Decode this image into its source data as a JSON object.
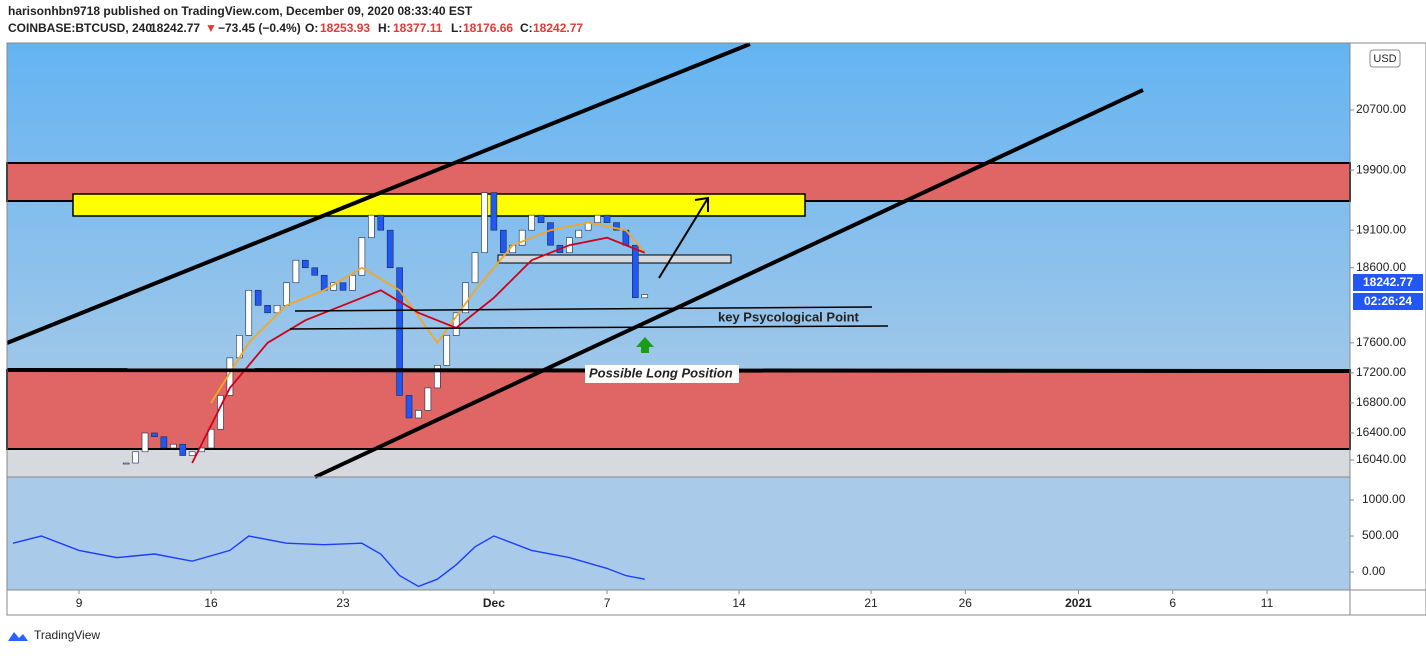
{
  "header": {
    "publisher": "harisonhbn9718 published on TradingView.com, December 09, 2020 08:33:40 EST",
    "symbol": "COINBASE:BTCUSD, 240",
    "last": "18242.77",
    "arrow": "▼",
    "change": "−73.45 (−0.4%)",
    "o_label": "O:",
    "open": "18253.93",
    "h_label": "H:",
    "high": "18377.11",
    "l_label": "L:",
    "low": "18176.66",
    "c_label": "C:",
    "close": "18242.77"
  },
  "currency": "USD",
  "countdown": "02:26:24",
  "brand": "TradingView",
  "annotations": {
    "key_point": "key Psycological Point",
    "long_position": "Possible Long Position"
  },
  "chart_data": {
    "type": "candlestick",
    "xlim": [
      -3.82,
      67.4
    ],
    "xticks": [
      {
        "value": 0,
        "label": "9"
      },
      {
        "value": 7,
        "label": "16"
      },
      {
        "value": 14,
        "label": "23"
      },
      {
        "value": 22,
        "label": "Dec"
      },
      {
        "value": 28,
        "label": "7"
      },
      {
        "value": 35,
        "label": "14"
      },
      {
        "value": 42,
        "label": "21"
      },
      {
        "value": 47,
        "label": "26"
      },
      {
        "value": 53,
        "label": "2021"
      },
      {
        "value": 58,
        "label": "6"
      },
      {
        "value": 63,
        "label": "11"
      }
    ],
    "ylim": [
      15814,
      21592
    ],
    "yticks": [
      {
        "value": 16040,
        "label": "16040.00"
      },
      {
        "value": 16400,
        "label": "16400.00"
      },
      {
        "value": 16800,
        "label": "16800.00"
      },
      {
        "value": 17200,
        "label": "17200.00"
      },
      {
        "value": 17600,
        "label": "17600.00"
      },
      {
        "value": 18600,
        "label": "18600.00"
      },
      {
        "value": 19100,
        "label": "19100.00"
      },
      {
        "value": 19900,
        "label": "19900.00"
      },
      {
        "value": 20700,
        "label": "20700.00"
      }
    ],
    "price": {
      "x": [
        2.5,
        3,
        3.5,
        4,
        4.5,
        5,
        5.5,
        6,
        6.5,
        7,
        7.5,
        8,
        8.5,
        9,
        9.5,
        10,
        10.5,
        11,
        11.5,
        12,
        12.5,
        13,
        13.5,
        14,
        14.5,
        15,
        15.5,
        16,
        16.5,
        17,
        17.5,
        18,
        18.5,
        19,
        19.5,
        20,
        20.5,
        21,
        21.5,
        22,
        22.5,
        23,
        23.5,
        24,
        24.5,
        25,
        25.5,
        26,
        26.5,
        27,
        27.5,
        28,
        28.5,
        29,
        29.5,
        30
      ],
      "values": [
        16000,
        16150,
        16400,
        16350,
        16200,
        16250,
        16100,
        16150,
        16200,
        16450,
        16900,
        17400,
        17700,
        18300,
        18100,
        18000,
        18100,
        18400,
        18700,
        18600,
        18500,
        18300,
        18400,
        18300,
        18500,
        19000,
        19300,
        19100,
        18600,
        16900,
        16600,
        16700,
        17000,
        17300,
        17700,
        18000,
        18400,
        18800,
        19600,
        19100,
        18800,
        18900,
        19100,
        19300,
        19200,
        18900,
        18800,
        19000,
        19100,
        19200,
        19300,
        19200,
        19100,
        18900,
        18200,
        18242.77
      ],
      "value_labels": {
        "29": null
      },
      "up_color": "#ffffff",
      "down_color": "#2157f3"
    },
    "series": [
      {
        "color": "#f5a623",
        "x": [
          7,
          9,
          11,
          13,
          15,
          17,
          19,
          21,
          23,
          25,
          27,
          29,
          30
        ],
        "values": [
          16800,
          17600,
          18100,
          18300,
          18600,
          18300,
          17600,
          18300,
          18900,
          19100,
          19200,
          19100,
          18800
        ]
      },
      {
        "color": "#d0021b",
        "x": [
          6,
          8,
          10,
          12,
          14,
          16,
          18,
          20,
          22,
          24,
          26,
          28,
          30
        ],
        "values": [
          16000,
          17000,
          17600,
          17900,
          18100,
          18300,
          18000,
          17800,
          18200,
          18700,
          18900,
          19000,
          18800
        ]
      }
    ],
    "indicator": {
      "ylim": [
        -250,
        1320
      ],
      "yticks": [
        {
          "value": 1000,
          "label": "1000.00"
        },
        {
          "value": 500,
          "label": "500.00"
        },
        {
          "value": 0,
          "label": "0.00"
        }
      ],
      "color": "#1e3cff",
      "x": [
        -3.5,
        -2,
        0,
        2,
        4,
        6,
        8,
        9,
        11,
        13,
        15,
        16,
        17,
        18,
        19,
        20,
        21,
        22,
        24,
        26,
        28,
        29,
        30
      ],
      "values": [
        400,
        500,
        300,
        200,
        250,
        150,
        300,
        500,
        400,
        380,
        400,
        250,
        -50,
        -200,
        -100,
        100,
        350,
        500,
        300,
        200,
        50,
        -50,
        -100
      ]
    }
  }
}
